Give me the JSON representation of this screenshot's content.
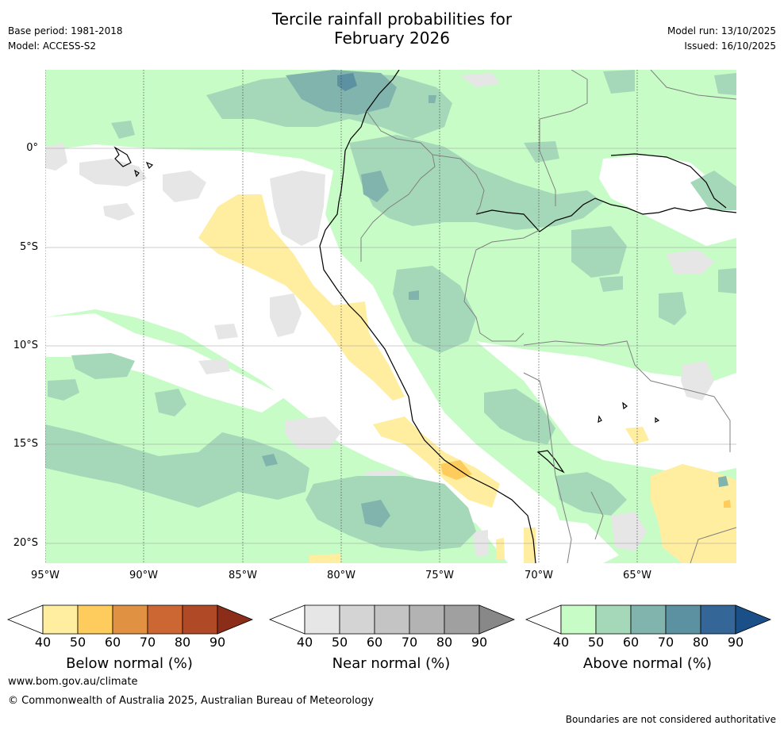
{
  "header": {
    "title_line1": "Tercile rainfall probabilities for",
    "title_line2": "February 2026",
    "base_period": "Base period: 1981-2018",
    "model": "Model: ACCESS-S2",
    "model_run": "Model run: 13/10/2025",
    "issued": "Issued: 16/10/2025"
  },
  "map": {
    "lat_labels": [
      "0°",
      "5°S",
      "10°S",
      "15°S",
      "20°S"
    ],
    "lon_labels": [
      "95°W",
      "90°W",
      "85°W",
      "80°W",
      "75°W",
      "70°W",
      "65°W"
    ],
    "colors": {
      "below": [
        "#ffffff",
        "#ffeda0",
        "#fecc5c",
        "#e09142",
        "#cc6633",
        "#b04a26",
        "#8c2d1a"
      ],
      "near": [
        "#ffffff",
        "#e6e6e6",
        "#d4d4d4",
        "#c4c4c4",
        "#b3b3b3",
        "#a0a0a0",
        "#888888"
      ],
      "above": [
        "#ffffff",
        "#c7fcc7",
        "#a5d8b9",
        "#80b4ad",
        "#5b91a0",
        "#346698",
        "#1a4f88"
      ],
      "gridline": "#999999",
      "coast": "#000000",
      "border": "#808080"
    }
  },
  "colorbars": [
    {
      "label": "Below normal (%)",
      "ticks": [
        "40",
        "50",
        "60",
        "70",
        "80",
        "90"
      ]
    },
    {
      "label": "Near normal (%)",
      "ticks": [
        "40",
        "50",
        "60",
        "70",
        "80",
        "90"
      ]
    },
    {
      "label": "Above normal (%)",
      "ticks": [
        "40",
        "50",
        "60",
        "70",
        "80",
        "90"
      ]
    }
  ],
  "footer": {
    "website": "www.bom.gov.au/climate",
    "copyright": "© Commonwealth of Australia 2025, Australian Bureau of Meteorology",
    "disclaimer": "Boundaries are not considered authoritative"
  }
}
